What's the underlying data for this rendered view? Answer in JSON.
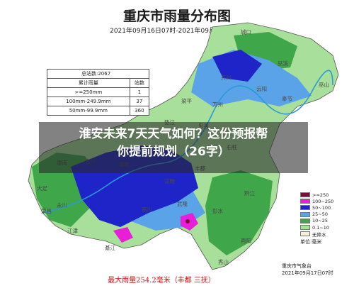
{
  "map": {
    "title": "重庆市雨量分布图",
    "period": "2021年09月16日07时-2021年09月17日07时"
  },
  "stats_table": {
    "caption": "总站数:2067",
    "headers": [
      "累计雨量",
      "站数"
    ],
    "rows": [
      [
        ">=250mm",
        "1"
      ],
      [
        "100mm-249.9mm",
        "37"
      ],
      [
        "50mm-99.9mm",
        "360"
      ]
    ]
  },
  "overlay": {
    "headline_line1": "淮安未来7天天气如何？这份预报帮",
    "headline_line2": "你提前规划（26字）"
  },
  "legend": {
    "items": [
      {
        "label": ">=250",
        "color": "#7a0e3a"
      },
      {
        "label": "100~250",
        "color": "#e81ed9"
      },
      {
        "label": "50~100",
        "color": "#1e24c8"
      },
      {
        "label": "25~50",
        "color": "#5ba3e8"
      },
      {
        "label": "10~25",
        "color": "#3fa64a"
      },
      {
        "label": "0.1~10",
        "color": "#a8df9a"
      },
      {
        "label": "无降水",
        "color": "#f4f0dc"
      }
    ],
    "unit": "单位:毫米"
  },
  "places": {
    "chengkou": "城口",
    "wuxi": "巫溪",
    "wushan": "巫山",
    "fengjie": "奉节",
    "kaizhou": "开州",
    "yunyang": "云阳",
    "hechuan": "合川",
    "changshou": "长寿",
    "fuling": "涪陵",
    "fengdu": "丰都",
    "dazu": "大足",
    "yongchuan": "永川",
    "jiangjin": "江津",
    "qijiang": "綦江",
    "nanchuan": "南川",
    "wulong": "武隆",
    "pengshui": "彭水",
    "qianjiang": "黔江",
    "youyang": "酉阳",
    "xiushan": "秀山",
    "wanzhou": "万州",
    "shizhu": "石柱",
    "zhongxian": "忠县",
    "dianjiang": "垫江",
    "liangping": "梁平",
    "tongnan": "潼南",
    "rongchang": "荣昌",
    "yubei": "渝北"
  },
  "footer": {
    "max_rain": "最大雨量254.2毫米（丰都 三抚）",
    "org": "重庆市气象台",
    "issued": "2021年09月17日07时"
  }
}
